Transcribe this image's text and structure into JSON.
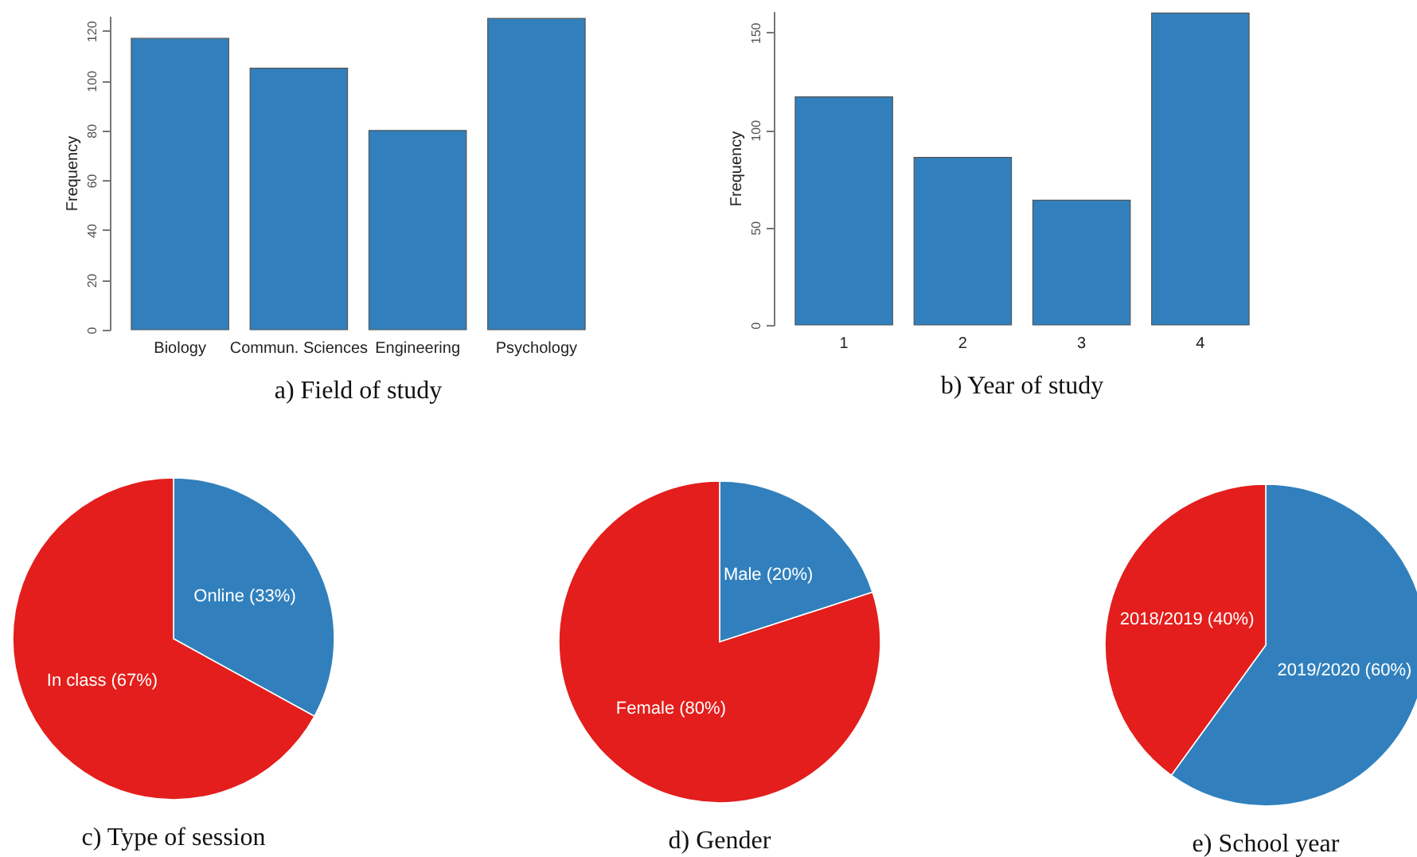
{
  "chart_data": [
    {
      "type": "bar",
      "title": "a) Field of study",
      "ylabel": "Frequency",
      "categories": [
        "Biology",
        "Commun. Sciences",
        "Engineering",
        "Psychology"
      ],
      "values": [
        117,
        105,
        80,
        125
      ],
      "color": "#3180bd",
      "ylim": [
        0,
        126
      ],
      "yticks": [
        0,
        20,
        40,
        60,
        80,
        100,
        120
      ],
      "grid": false
    },
    {
      "type": "bar",
      "title": "b) Year of study",
      "ylabel": "Frequency",
      "categories": [
        "1",
        "2",
        "3",
        "4"
      ],
      "values": [
        117,
        86,
        64,
        160
      ],
      "color": "#3180bd",
      "ylim": [
        0,
        161
      ],
      "yticks": [
        0,
        50,
        100,
        150
      ],
      "grid": false
    },
    {
      "type": "pie",
      "title": "c) Type of session",
      "categories": [
        "Online (33%)",
        "In class (67%)"
      ],
      "values": [
        33,
        67
      ],
      "colors": [
        "#3180bd",
        "#e31e1c"
      ]
    },
    {
      "type": "pie",
      "title": "d) Gender",
      "categories": [
        "Male (20%)",
        "Female (80%)"
      ],
      "values": [
        20,
        80
      ],
      "colors": [
        "#3180bd",
        "#e31e1c"
      ]
    },
    {
      "type": "pie",
      "title": "e) School year",
      "categories": [
        "2019/2020 (60%)",
        "2018/2019 (40%)"
      ],
      "values": [
        60,
        40
      ],
      "colors": [
        "#3180bd",
        "#e31e1c"
      ]
    }
  ]
}
